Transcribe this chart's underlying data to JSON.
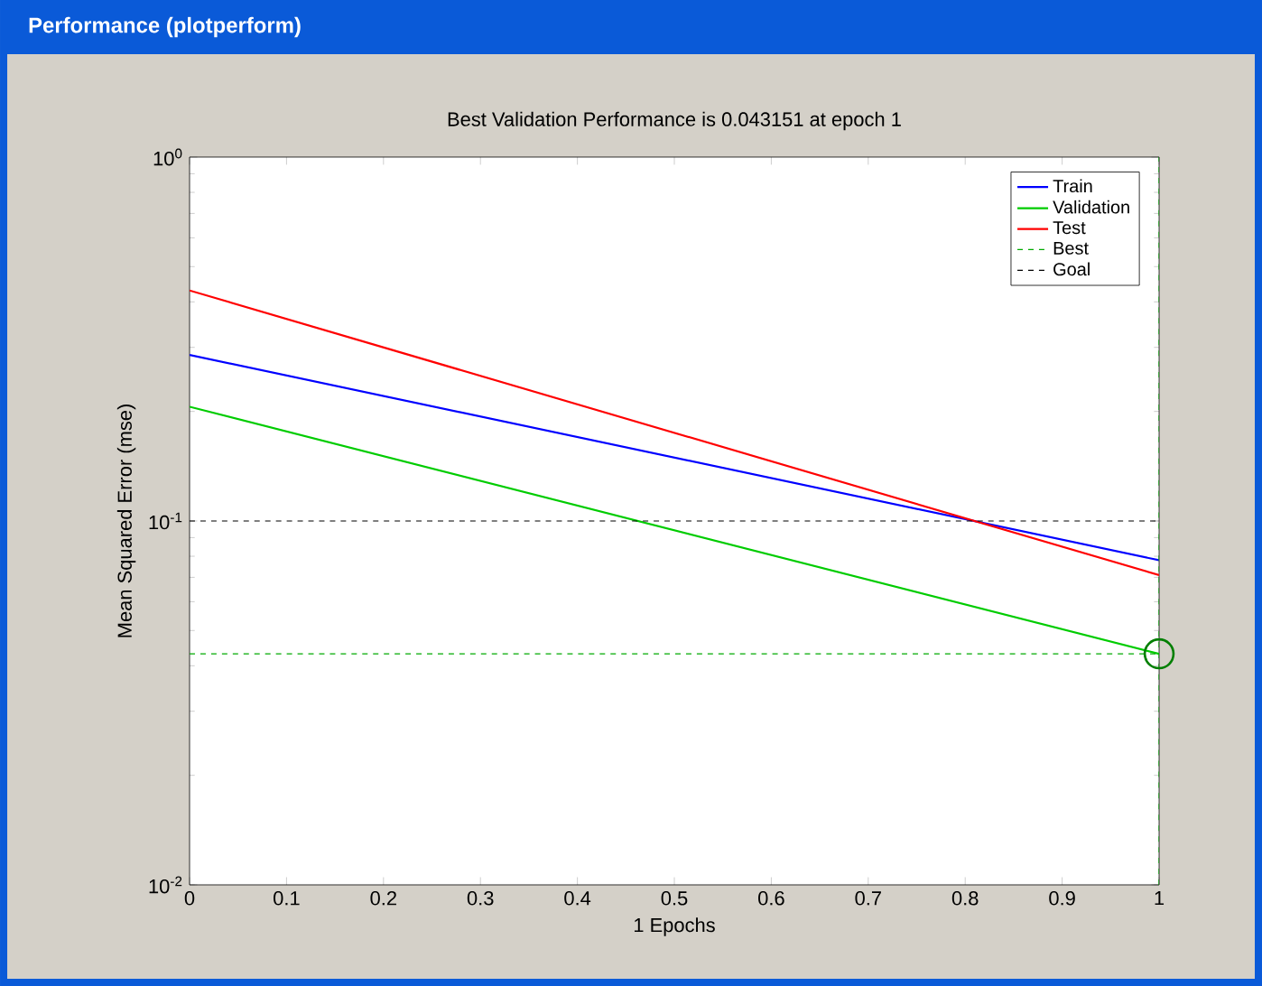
{
  "chart_data": {
    "type": "line",
    "title": "Performance (plotperform)",
    "subtitle": "Best Validation Performance is 0.043151 at epoch 1",
    "xlabel": "1 Epochs",
    "ylabel": "Mean Squared Error  (mse)",
    "x": [
      0,
      1
    ],
    "series": [
      {
        "name": "Train",
        "color": "#0000ff",
        "values": [
          0.286,
          0.078
        ]
      },
      {
        "name": "Validation",
        "color": "#00cc00",
        "values": [
          0.206,
          0.043151
        ]
      },
      {
        "name": "Test",
        "color": "#ff0000",
        "values": [
          0.43,
          0.071
        ]
      },
      {
        "type": "scatter",
        "marker": "circle",
        "color": "#007f00",
        "x": [
          1
        ],
        "values": [
          0.043151
        ]
      }
    ],
    "ref_lines": [
      {
        "axis": "y",
        "value": 0.043151,
        "label": "Best",
        "color": "#00aa00",
        "line_style": "dashed"
      },
      {
        "axis": "x",
        "value": 1,
        "color": "#00aa00",
        "line_style": "dashed"
      },
      {
        "axis": "y",
        "value": 0.1,
        "label": "Goal",
        "color": "#000000",
        "line_style": "dashed"
      }
    ],
    "log": "y",
    "xlim": [
      0,
      1
    ],
    "ylim": [
      0.01,
      1
    ],
    "xticks": [
      0,
      0.1,
      0.2,
      0.3,
      0.4,
      0.5,
      0.6,
      0.7,
      0.8,
      0.9,
      1
    ],
    "yticks": [
      {
        "value": 0.01,
        "label": "10$^{-2}$"
      },
      {
        "value": 0.1,
        "label": "10$^{-1}$"
      },
      {
        "value": 1,
        "label": "10$^{0}$"
      }
    ],
    "legend": "top right",
    "line_style": "solid",
    "marker": "none"
  }
}
